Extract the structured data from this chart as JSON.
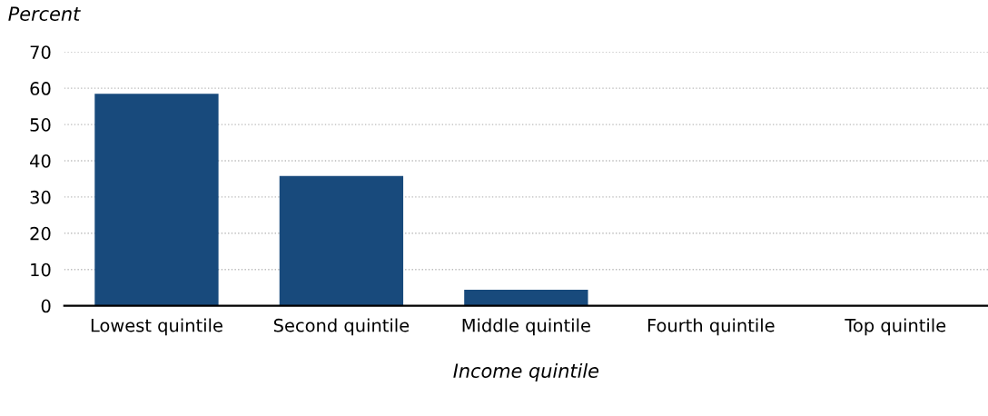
{
  "chart_data": {
    "type": "bar",
    "ylabel": "Percent",
    "xlabel": "Income quintile",
    "categories": [
      "Lowest quintile",
      "Second quintile",
      "Middle quintile",
      "Fourth quintile",
      "Top quintile"
    ],
    "values": [
      58.5,
      35.8,
      4.4,
      0,
      0
    ],
    "color": "#184a7c",
    "ylim": [
      0,
      70
    ],
    "yticks": [
      0,
      10,
      20,
      30,
      40,
      50,
      60,
      70
    ],
    "grid": "y"
  }
}
